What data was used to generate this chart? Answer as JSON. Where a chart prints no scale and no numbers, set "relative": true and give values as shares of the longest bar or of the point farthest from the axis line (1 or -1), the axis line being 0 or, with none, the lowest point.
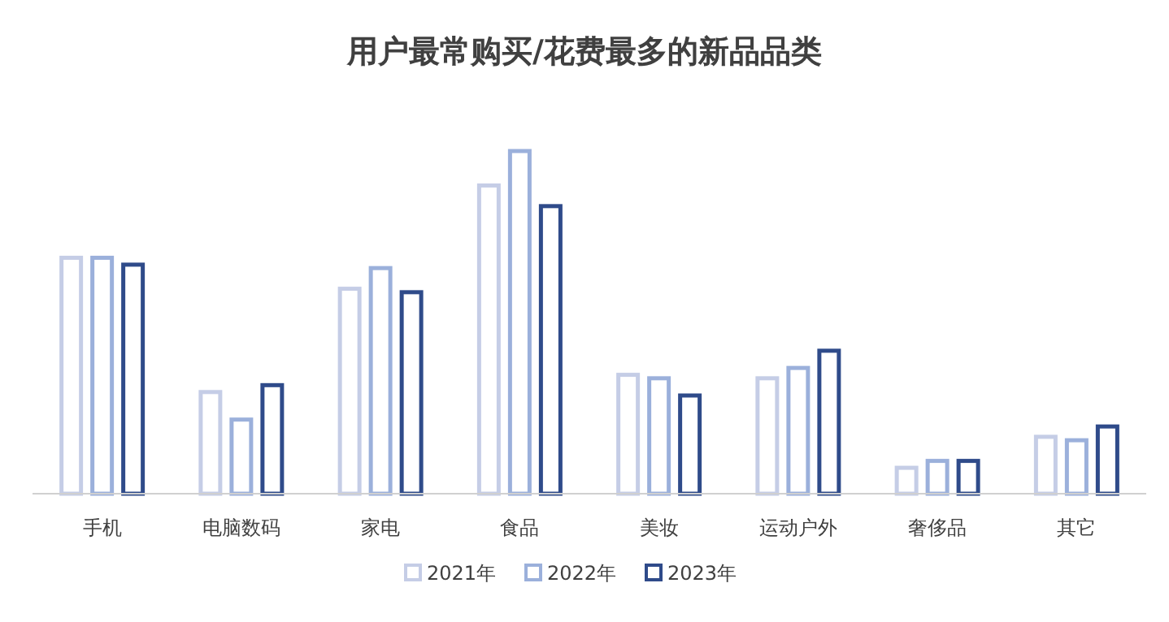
{
  "chart_data": {
    "type": "bar",
    "title": "用户最常购买/花费最多的新品品类",
    "relative": true,
    "legend": "bottom",
    "categories": [
      "手机",
      "电脑数码",
      "家电",
      "食品",
      "美妆",
      "运动户外",
      "奢侈品",
      "其它"
    ],
    "series": [
      {
        "name": "2021年",
        "color": "#c5cde6",
        "values": [
          0.69,
          0.3,
          0.6,
          0.9,
          0.35,
          0.34,
          0.08,
          0.17
        ]
      },
      {
        "name": "2022年",
        "color": "#9bb0db",
        "values": [
          0.69,
          0.22,
          0.66,
          1,
          0.34,
          0.37,
          0.1,
          0.16
        ]
      },
      {
        "name": "2023年",
        "color": "#2f4b8a",
        "values": [
          0.67,
          0.32,
          0.59,
          0.84,
          0.29,
          0.42,
          0.1,
          0.2
        ]
      }
    ]
  }
}
